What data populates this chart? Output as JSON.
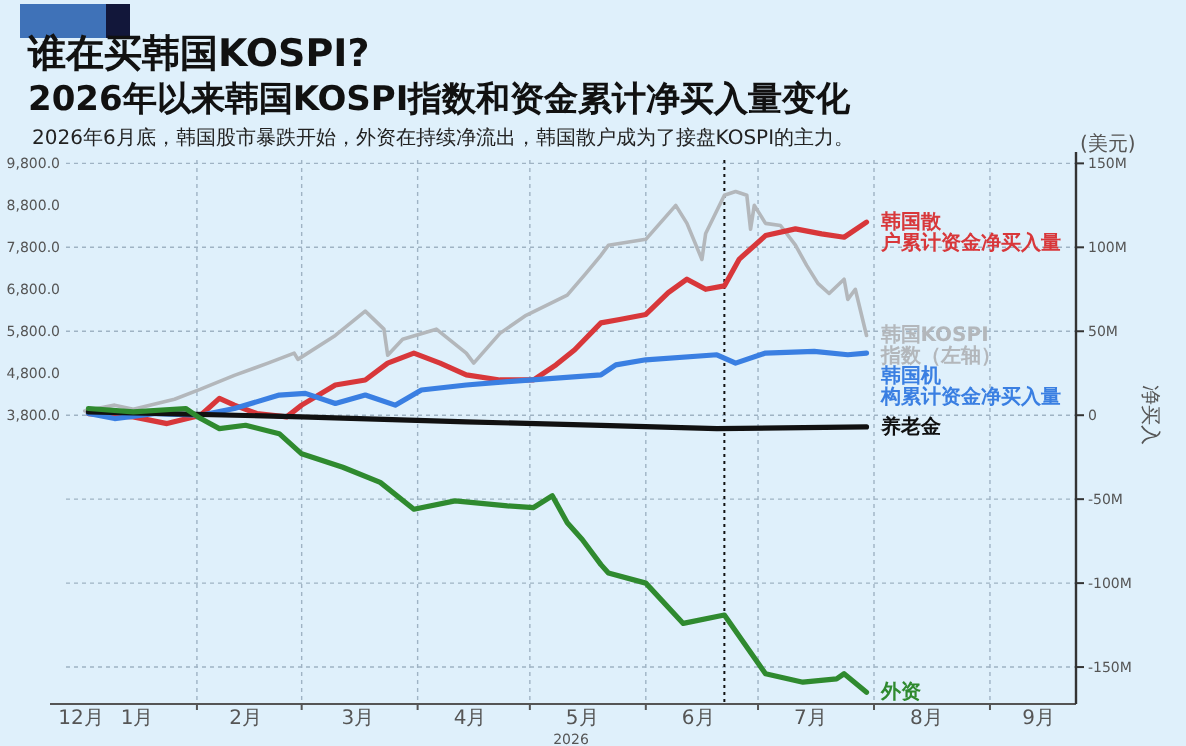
{
  "chart_data": {
    "type": "line",
    "title": "谁在买韩国KOSPI?",
    "subtitle": "2026年以来韩国KOSPI指数和资金累计净买入量变化",
    "annotations": [
      "2026年6月底，韩国股市暴跌开始，外资在持续净流出，韩国散户成为了接盘KOSPI的主力。",
      "(美元)"
    ],
    "xlabel": "2026",
    "y2label": "净买入",
    "xlim": [
      "2025-12-28",
      "2026-09-24"
    ],
    "xticks": [
      {
        "value": "2026-01-01",
        "label": "12月"
      },
      {
        "value": "2026-01-16",
        "label": "1月"
      },
      {
        "value": "2026-02-14",
        "label": "2月"
      },
      {
        "value": "2026-03-16",
        "label": "3月"
      },
      {
        "value": "2026-04-15",
        "label": "4月"
      },
      {
        "value": "2026-05-15",
        "label": "5月"
      },
      {
        "value": "2026-06-15",
        "label": "6月"
      },
      {
        "value": "2026-07-15",
        "label": "7月"
      },
      {
        "value": "2026-08-15",
        "label": "8月"
      },
      {
        "value": "2026-09-14",
        "label": "9月"
      },
      {
        "value": "2026-02-01",
        "label": null
      },
      {
        "value": "2026-03-01",
        "label": null
      },
      {
        "value": "2026-04-01",
        "label": null
      },
      {
        "value": "2026-05-01",
        "label": null
      },
      {
        "value": "2026-06-01",
        "label": null
      },
      {
        "value": "2026-07-01",
        "label": null
      },
      {
        "value": "2026-08-01",
        "label": null
      },
      {
        "value": "2026-09-01",
        "label": null
      }
    ],
    "ylim": [
      -3080,
      9880
    ],
    "yticks": [
      {
        "value": 9800,
        "label": "9,800.0"
      },
      {
        "value": 8800,
        "label": "8,800.0"
      },
      {
        "value": 7800,
        "label": "7,800.0"
      },
      {
        "value": 6800,
        "label": "6,800.0"
      },
      {
        "value": 5800,
        "label": "5,800.0"
      },
      {
        "value": 4800,
        "label": "4,800.0"
      },
      {
        "value": 3800,
        "label": "3,800.0"
      }
    ],
    "y2lim": [
      -172,
      152
    ],
    "y2ticks": [
      {
        "value": 150,
        "label": "150M"
      },
      {
        "value": 100,
        "label": "100M"
      },
      {
        "value": 50,
        "label": "50M"
      },
      0,
      {
        "value": -50,
        "label": "-50M"
      },
      {
        "value": -100,
        "label": "-100M"
      },
      {
        "value": -150,
        "label": "-150M"
      }
    ],
    "grid": true,
    "legend": false,
    "line_style": "solid",
    "ref_lines": [
      {
        "axis": "x",
        "value": "2026-06-22",
        "label": null,
        "color": "#111111",
        "line_style": "dotted"
      }
    ],
    "series": [
      {
        "name": "韩国KOSPI指数（左轴）",
        "color": "#b3b7bb",
        "axis": "y",
        "x": [
          "2026-01-02",
          "2026-01-10",
          "2026-01-15",
          "2026-01-26",
          "2026-02-02",
          "2026-02-11",
          "2026-02-20",
          "2026-02-27",
          "2026-02-28",
          "2026-03-10",
          "2026-03-18",
          "2026-03-23",
          "2026-03-24",
          "2026-03-28",
          "2026-04-06",
          "2026-04-14",
          "2026-04-16",
          "2026-04-23",
          "2026-04-30",
          "2026-05-11",
          "2026-05-16",
          "2026-05-20",
          "2026-05-22",
          "2026-06-01",
          "2026-06-09",
          "2026-06-12",
          "2026-06-16",
          "2026-06-17",
          "2026-06-22",
          "2026-06-25",
          "2026-06-28",
          "2026-06-29",
          "2026-06-30",
          "2026-07-03",
          "2026-07-07",
          "2026-07-11",
          "2026-07-14",
          "2026-07-17",
          "2026-07-20",
          "2026-07-24",
          "2026-07-25",
          "2026-07-27",
          "2026-07-30"
        ],
        "values": [
          3900,
          4040,
          3940,
          4180,
          4420,
          4750,
          5040,
          5280,
          5130,
          5700,
          6280,
          5850,
          5230,
          5610,
          5850,
          5280,
          5040,
          5750,
          6180,
          6660,
          7180,
          7610,
          7850,
          7990,
          8800,
          8370,
          7510,
          8130,
          9040,
          9130,
          9040,
          8230,
          8800,
          8370,
          8320,
          7850,
          7370,
          6940,
          6700,
          7040,
          6560,
          6800,
          5700
        ]
      },
      {
        "name": "韩国散户累计资金净买入量",
        "color": "#d8373a",
        "axis": "y2",
        "x": [
          "2026-01-03",
          "2026-01-08",
          "2026-01-15",
          "2026-01-24",
          "2026-02-02",
          "2026-02-07",
          "2026-02-11",
          "2026-02-17",
          "2026-02-25",
          "2026-03-01",
          "2026-03-10",
          "2026-03-18",
          "2026-03-24",
          "2026-03-31",
          "2026-04-07",
          "2026-04-14",
          "2026-04-23",
          "2026-05-02",
          "2026-05-08",
          "2026-05-13",
          "2026-05-20",
          "2026-05-25",
          "2026-06-01",
          "2026-06-07",
          "2026-06-12",
          "2026-06-17",
          "2026-06-22",
          "2026-06-26",
          "2026-07-03",
          "2026-07-11",
          "2026-07-18",
          "2026-07-24",
          "2026-07-30"
        ],
        "values": [
          1,
          0,
          -1,
          -5,
          0,
          10,
          6,
          1,
          -1,
          6,
          18,
          21,
          31,
          37,
          31,
          24,
          21,
          21,
          30,
          39,
          55,
          57,
          60,
          73,
          81,
          75,
          77,
          93,
          107,
          111,
          108,
          106,
          115
        ]
      },
      {
        "name": "韩国机构累计资金净买入量",
        "color": "#3a7fe2",
        "axis": "y2",
        "x": [
          "2026-01-03",
          "2026-01-10",
          "2026-01-21",
          "2026-02-02",
          "2026-02-11",
          "2026-02-23",
          "2026-03-02",
          "2026-03-10",
          "2026-03-18",
          "2026-03-26",
          "2026-04-02",
          "2026-04-14",
          "2026-04-25",
          "2026-05-20",
          "2026-05-24",
          "2026-06-01",
          "2026-06-20",
          "2026-06-25",
          "2026-07-03",
          "2026-07-16",
          "2026-07-25",
          "2026-07-30"
        ],
        "values": [
          1,
          -2,
          1,
          0,
          4,
          12,
          13,
          7,
          12,
          6,
          15,
          18,
          20,
          24,
          30,
          33,
          36,
          31,
          37,
          38,
          36,
          37
        ]
      },
      {
        "name": "养老金",
        "color": "#111111",
        "axis": "y2",
        "x": [
          "2026-01-03",
          "2026-01-24",
          "2026-03-01",
          "2026-04-14",
          "2026-05-20",
          "2026-06-20",
          "2026-07-30"
        ],
        "values": [
          2,
          1,
          -1,
          -4,
          -6,
          -8,
          -7
        ]
      },
      {
        "name": "外资",
        "color": "#2f8a2f",
        "axis": "y2",
        "x": [
          "2026-01-03",
          "2026-01-15",
          "2026-01-29",
          "2026-02-02",
          "2026-02-07",
          "2026-02-14",
          "2026-02-23",
          "2026-03-01",
          "2026-03-12",
          "2026-03-22",
          "2026-03-31",
          "2026-04-11",
          "2026-04-25",
          "2026-05-02",
          "2026-05-07",
          "2026-05-11",
          "2026-05-15",
          "2026-05-20",
          "2026-05-22",
          "2026-06-01",
          "2026-06-11",
          "2026-06-22",
          "2026-07-03",
          "2026-07-13",
          "2026-07-22",
          "2026-07-24",
          "2026-07-30"
        ],
        "values": [
          4,
          2,
          4,
          -2,
          -8,
          -6,
          -11,
          -23,
          -31,
          -40,
          -56,
          -51,
          -54,
          -55,
          -48,
          -64,
          -74,
          -89,
          -94,
          -100,
          -124,
          -119,
          -154,
          -159,
          -157,
          -154,
          -165
        ]
      }
    ]
  }
}
